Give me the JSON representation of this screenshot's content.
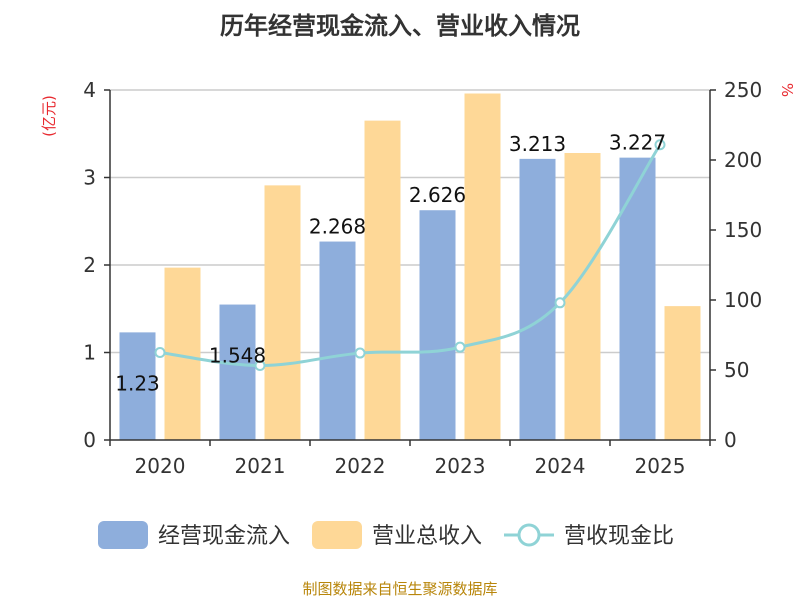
{
  "chart_data": {
    "type": "bar",
    "title": "历年经营现金流入、营业收入情况",
    "categories": [
      "2020",
      "2021",
      "2022",
      "2023",
      "2024",
      "2025"
    ],
    "series": [
      {
        "name": "经营现金流入",
        "type": "bar",
        "axis": "left",
        "color": "#8eaedc",
        "values": [
          1.23,
          1.548,
          2.268,
          2.626,
          3.213,
          3.227
        ]
      },
      {
        "name": "营业总收入",
        "type": "bar",
        "axis": "left",
        "color": "#fed897",
        "values": [
          1.97,
          2.91,
          3.65,
          3.96,
          3.28,
          1.53
        ]
      },
      {
        "name": "营收现金比",
        "type": "line",
        "axis": "right",
        "color": "#8fd3d6",
        "values": [
          62.5,
          53.2,
          62.1,
          66.3,
          98.0,
          210.9
        ]
      }
    ],
    "data_labels": [
      "1.23",
      "1.548",
      "2.268",
      "2.626",
      "3.213",
      "3.227"
    ],
    "y_left": {
      "unit": "(亿元)",
      "min": 0,
      "max": 4,
      "ticks": [
        "0",
        "1",
        "2",
        "3",
        "4"
      ]
    },
    "y_right": {
      "unit": "%",
      "min": 0,
      "max": 250,
      "ticks": [
        "0",
        "50",
        "100",
        "150",
        "200",
        "250"
      ]
    },
    "grid": true,
    "legend_position": "bottom"
  },
  "source": "制图数据来自恒生聚源数据库"
}
